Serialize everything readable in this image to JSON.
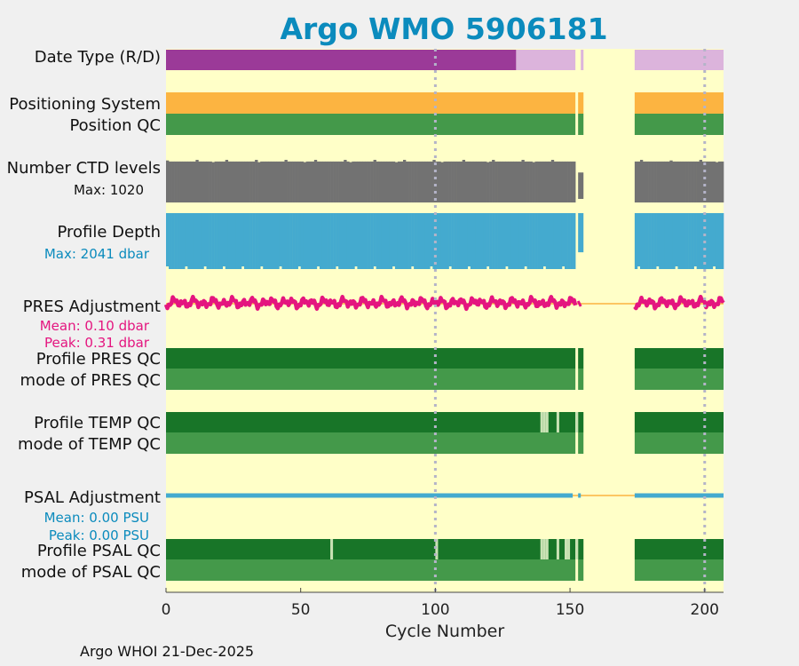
{
  "footer": "Argo WHOI 21-Dec-2025",
  "chart_data": {
    "type": "timeline",
    "title": "Argo WMO 5906181",
    "xlabel": "Cycle Number",
    "xlim": [
      0,
      207
    ],
    "xticks": [
      0,
      50,
      100,
      150,
      200
    ],
    "vertical_dotted_lines": [
      100,
      200
    ],
    "no_data_cycles": [
      [
        155,
        174
      ]
    ],
    "labels": {
      "date_type": "Date Type (R/D)",
      "positioning_system": "Positioning System",
      "position_qc": "Position QC",
      "ctd_levels": "Number CTD levels",
      "ctd_max": "Max: 1020",
      "profile_depth": "Profile Depth",
      "depth_max": "Max: 2041 dbar",
      "pres_adj": "PRES Adjustment",
      "pres_mean": "Mean: 0.10 dbar",
      "pres_peak": "Peak: 0.31 dbar",
      "profile_pres_qc": "Profile PRES QC",
      "mode_pres_qc": "mode of PRES QC",
      "profile_temp_qc": "Profile TEMP QC",
      "mode_temp_qc": "mode of TEMP QC",
      "psal_adj": "PSAL Adjustment",
      "psal_mean": "Mean: 0.00 PSU",
      "psal_peak": "Peak: 0.00 PSU",
      "profile_psal_qc": "Profile PSAL QC",
      "mode_psal_qc": "mode of PSAL QC"
    },
    "series": {
      "date_type": {
        "realtime_range": [
          0,
          130
        ],
        "delayed_ranges": [
          [
            130,
            152
          ],
          [
            154,
            155
          ],
          [
            174,
            207
          ]
        ]
      },
      "positioning_system": {
        "ranges": [
          [
            0,
            152
          ],
          [
            153,
            155
          ],
          [
            174,
            207
          ]
        ]
      },
      "position_qc": {
        "ranges": [
          [
            0,
            152
          ],
          [
            153,
            155
          ],
          [
            174,
            207
          ]
        ]
      },
      "ctd_levels": {
        "max": 1020,
        "typical": 980,
        "ranges": [
          [
            0,
            152
          ],
          [
            174,
            207
          ]
        ],
        "partial": [
          [
            153,
            155,
            0.62
          ]
        ]
      },
      "profile_depth": {
        "max_dbar": 2041,
        "ranges": [
          [
            0,
            152
          ],
          [
            174,
            207
          ]
        ],
        "partial": [
          [
            153,
            155,
            0.7
          ]
        ]
      },
      "pres_adjustment": {
        "mean_dbar": 0.1,
        "peak_dbar": 0.31,
        "ranges": [
          [
            0,
            152
          ],
          [
            174,
            207
          ]
        ]
      },
      "profile_pres_qc": {
        "ranges": [
          [
            0,
            152
          ],
          [
            153,
            155
          ],
          [
            174,
            207
          ]
        ]
      },
      "mode_pres_qc": {
        "ranges": [
          [
            0,
            152
          ],
          [
            153,
            155
          ],
          [
            174,
            207
          ]
        ]
      },
      "profile_temp_qc": {
        "ranges": [
          [
            0,
            152
          ],
          [
            153,
            155
          ],
          [
            174,
            207
          ]
        ],
        "light_cycles": [
          139,
          140,
          141,
          145,
          152
        ]
      },
      "mode_temp_qc": {
        "ranges": [
          [
            0,
            152
          ],
          [
            153,
            155
          ],
          [
            174,
            207
          ]
        ]
      },
      "psal_adjustment": {
        "mean_psu": 0.0,
        "peak_psu": 0.0,
        "ranges": [
          [
            0,
            151
          ],
          [
            153,
            154
          ],
          [
            174,
            207
          ]
        ]
      },
      "profile_psal_qc": {
        "ranges": [
          [
            0,
            152
          ],
          [
            153,
            155
          ],
          [
            174,
            207
          ]
        ],
        "light_cycles": [
          61,
          100,
          139,
          140,
          141,
          145,
          148,
          149,
          152
        ]
      },
      "mode_psal_qc": {
        "ranges": [
          [
            0,
            152
          ],
          [
            153,
            155
          ],
          [
            174,
            207
          ]
        ]
      }
    },
    "colors": {
      "background": "#ffffc8",
      "purple": "#9b3a98",
      "lavender": "#dcb4dc",
      "orange": "#fcb441",
      "mid_green": "#44994a",
      "dark_green": "#187528",
      "light_green": "#c9e2b4",
      "gray": "#727272",
      "cyan": "#44aacf",
      "magenta": "#e4157f",
      "dotted": "#b4b4c8",
      "title": "#0b8bbd"
    }
  }
}
